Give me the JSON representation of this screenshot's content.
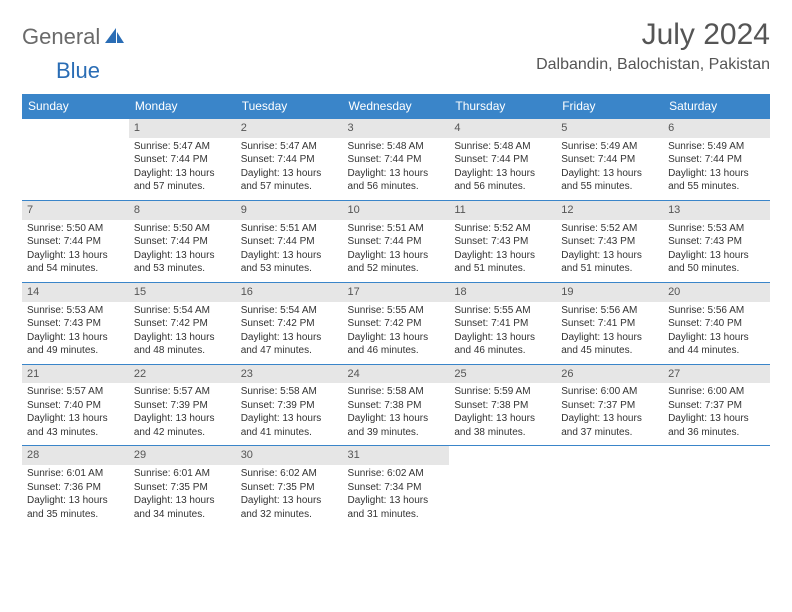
{
  "logo": {
    "word1": "General",
    "word2": "Blue"
  },
  "title": "July 2024",
  "location": "Dalbandin, Balochistan, Pakistan",
  "colors": {
    "header_bg": "#3a85c9",
    "header_text": "#ffffff",
    "daynum_bg": "#e6e6e6",
    "body_text": "#333333",
    "rule": "#3a85c9",
    "logo_gray": "#6a6a6a",
    "logo_blue": "#2a6db5"
  },
  "day_headers": [
    "Sunday",
    "Monday",
    "Tuesday",
    "Wednesday",
    "Thursday",
    "Friday",
    "Saturday"
  ],
  "weeks": [
    [
      null,
      {
        "n": "1",
        "sunrise": "5:47 AM",
        "sunset": "7:44 PM",
        "daylight": "13 hours and 57 minutes."
      },
      {
        "n": "2",
        "sunrise": "5:47 AM",
        "sunset": "7:44 PM",
        "daylight": "13 hours and 57 minutes."
      },
      {
        "n": "3",
        "sunrise": "5:48 AM",
        "sunset": "7:44 PM",
        "daylight": "13 hours and 56 minutes."
      },
      {
        "n": "4",
        "sunrise": "5:48 AM",
        "sunset": "7:44 PM",
        "daylight": "13 hours and 56 minutes."
      },
      {
        "n": "5",
        "sunrise": "5:49 AM",
        "sunset": "7:44 PM",
        "daylight": "13 hours and 55 minutes."
      },
      {
        "n": "6",
        "sunrise": "5:49 AM",
        "sunset": "7:44 PM",
        "daylight": "13 hours and 55 minutes."
      }
    ],
    [
      {
        "n": "7",
        "sunrise": "5:50 AM",
        "sunset": "7:44 PM",
        "daylight": "13 hours and 54 minutes."
      },
      {
        "n": "8",
        "sunrise": "5:50 AM",
        "sunset": "7:44 PM",
        "daylight": "13 hours and 53 minutes."
      },
      {
        "n": "9",
        "sunrise": "5:51 AM",
        "sunset": "7:44 PM",
        "daylight": "13 hours and 53 minutes."
      },
      {
        "n": "10",
        "sunrise": "5:51 AM",
        "sunset": "7:44 PM",
        "daylight": "13 hours and 52 minutes."
      },
      {
        "n": "11",
        "sunrise": "5:52 AM",
        "sunset": "7:43 PM",
        "daylight": "13 hours and 51 minutes."
      },
      {
        "n": "12",
        "sunrise": "5:52 AM",
        "sunset": "7:43 PM",
        "daylight": "13 hours and 51 minutes."
      },
      {
        "n": "13",
        "sunrise": "5:53 AM",
        "sunset": "7:43 PM",
        "daylight": "13 hours and 50 minutes."
      }
    ],
    [
      {
        "n": "14",
        "sunrise": "5:53 AM",
        "sunset": "7:43 PM",
        "daylight": "13 hours and 49 minutes."
      },
      {
        "n": "15",
        "sunrise": "5:54 AM",
        "sunset": "7:42 PM",
        "daylight": "13 hours and 48 minutes."
      },
      {
        "n": "16",
        "sunrise": "5:54 AM",
        "sunset": "7:42 PM",
        "daylight": "13 hours and 47 minutes."
      },
      {
        "n": "17",
        "sunrise": "5:55 AM",
        "sunset": "7:42 PM",
        "daylight": "13 hours and 46 minutes."
      },
      {
        "n": "18",
        "sunrise": "5:55 AM",
        "sunset": "7:41 PM",
        "daylight": "13 hours and 46 minutes."
      },
      {
        "n": "19",
        "sunrise": "5:56 AM",
        "sunset": "7:41 PM",
        "daylight": "13 hours and 45 minutes."
      },
      {
        "n": "20",
        "sunrise": "5:56 AM",
        "sunset": "7:40 PM",
        "daylight": "13 hours and 44 minutes."
      }
    ],
    [
      {
        "n": "21",
        "sunrise": "5:57 AM",
        "sunset": "7:40 PM",
        "daylight": "13 hours and 43 minutes."
      },
      {
        "n": "22",
        "sunrise": "5:57 AM",
        "sunset": "7:39 PM",
        "daylight": "13 hours and 42 minutes."
      },
      {
        "n": "23",
        "sunrise": "5:58 AM",
        "sunset": "7:39 PM",
        "daylight": "13 hours and 41 minutes."
      },
      {
        "n": "24",
        "sunrise": "5:58 AM",
        "sunset": "7:38 PM",
        "daylight": "13 hours and 39 minutes."
      },
      {
        "n": "25",
        "sunrise": "5:59 AM",
        "sunset": "7:38 PM",
        "daylight": "13 hours and 38 minutes."
      },
      {
        "n": "26",
        "sunrise": "6:00 AM",
        "sunset": "7:37 PM",
        "daylight": "13 hours and 37 minutes."
      },
      {
        "n": "27",
        "sunrise": "6:00 AM",
        "sunset": "7:37 PM",
        "daylight": "13 hours and 36 minutes."
      }
    ],
    [
      {
        "n": "28",
        "sunrise": "6:01 AM",
        "sunset": "7:36 PM",
        "daylight": "13 hours and 35 minutes."
      },
      {
        "n": "29",
        "sunrise": "6:01 AM",
        "sunset": "7:35 PM",
        "daylight": "13 hours and 34 minutes."
      },
      {
        "n": "30",
        "sunrise": "6:02 AM",
        "sunset": "7:35 PM",
        "daylight": "13 hours and 32 minutes."
      },
      {
        "n": "31",
        "sunrise": "6:02 AM",
        "sunset": "7:34 PM",
        "daylight": "13 hours and 31 minutes."
      },
      null,
      null,
      null
    ]
  ],
  "labels": {
    "sunrise": "Sunrise:",
    "sunset": "Sunset:",
    "daylight": "Daylight:"
  }
}
